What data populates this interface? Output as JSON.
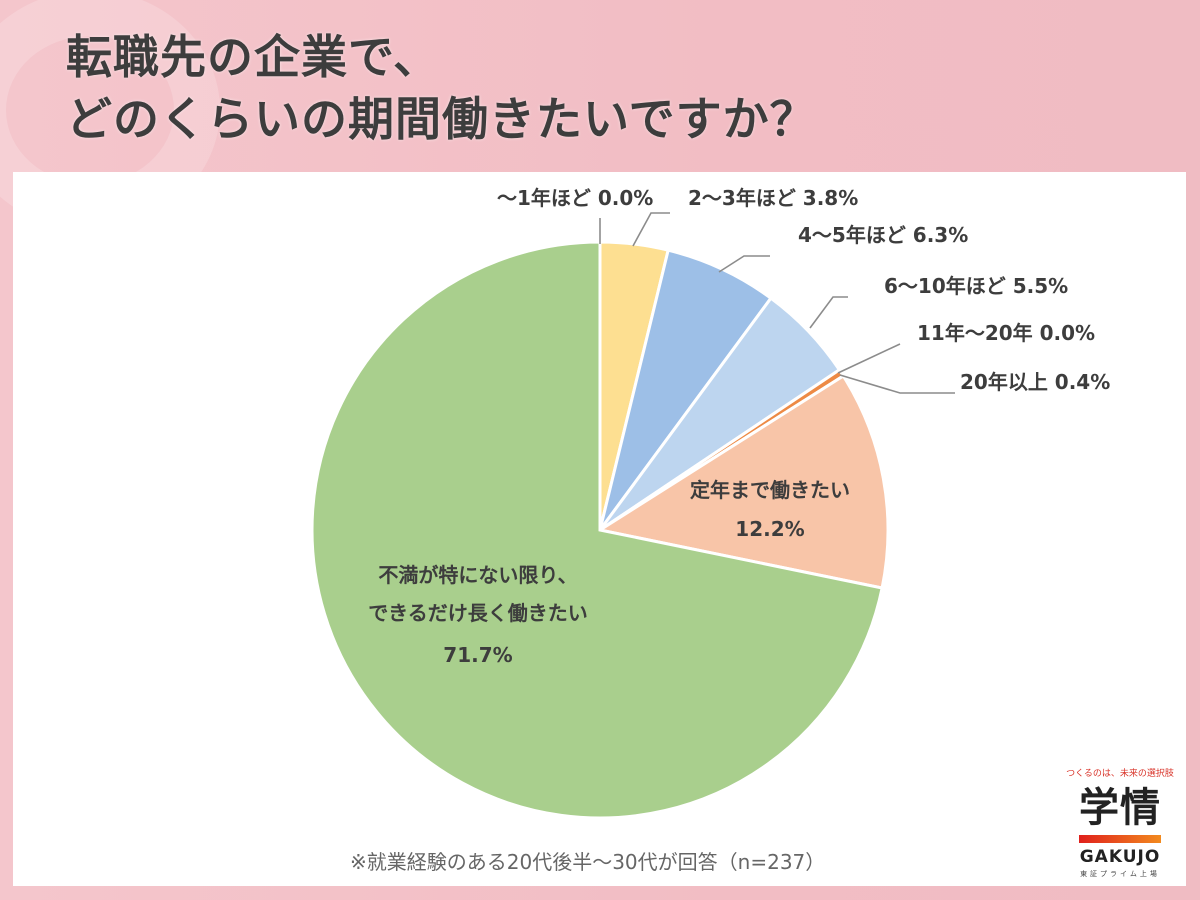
{
  "header": {
    "title_line1": "転職先の企業で、",
    "title_line2": "どのくらいの期間働きたいですか？"
  },
  "footnote": "※就業経験のある20代後半～30代が回答（n=237）",
  "logo": {
    "tagline": "つくるのは、未来の選択肢",
    "kanji": "学情",
    "name": "GAKUJO",
    "sub": "東証プライム上場"
  },
  "chart_data": {
    "type": "pie",
    "title": "転職先の企業で、どのくらいの期間働きたいですか？",
    "categories": [
      "～1年ほど",
      "2～3年ほど",
      "4～5年ほど",
      "6～10年ほど",
      "11年～20年",
      "20年以上",
      "定年まで働きたい",
      "不満が特にない限り、できるだけ長く働きたい"
    ],
    "values": [
      0.0,
      3.8,
      6.3,
      5.5,
      0.0,
      0.4,
      12.2,
      71.7
    ],
    "colors": [
      "#f2b48a",
      "#fddf91",
      "#9dbfe7",
      "#bdd5ef",
      "#a6a6a6",
      "#ed8a45",
      "#f8c5a8",
      "#a9cf8d"
    ],
    "start_angle": "12 o'clock, clockwise",
    "sample_size": 237
  },
  "labels": {
    "s0": "～1年ほど 0.0%",
    "s1": "2～3年ほど 3.8%",
    "s2": "4～5年ほど 6.3%",
    "s3": "6～10年ほど 5.5%",
    "s4": "11年～20年 0.0%",
    "s5": "20年以上 0.4%",
    "s6_name": "定年まで働きたい",
    "s6_value": "12.2%",
    "s7_line1": "不満が特にない限り、",
    "s7_line2": "できるだけ長く働きたい",
    "s7_value": "71.7%"
  }
}
